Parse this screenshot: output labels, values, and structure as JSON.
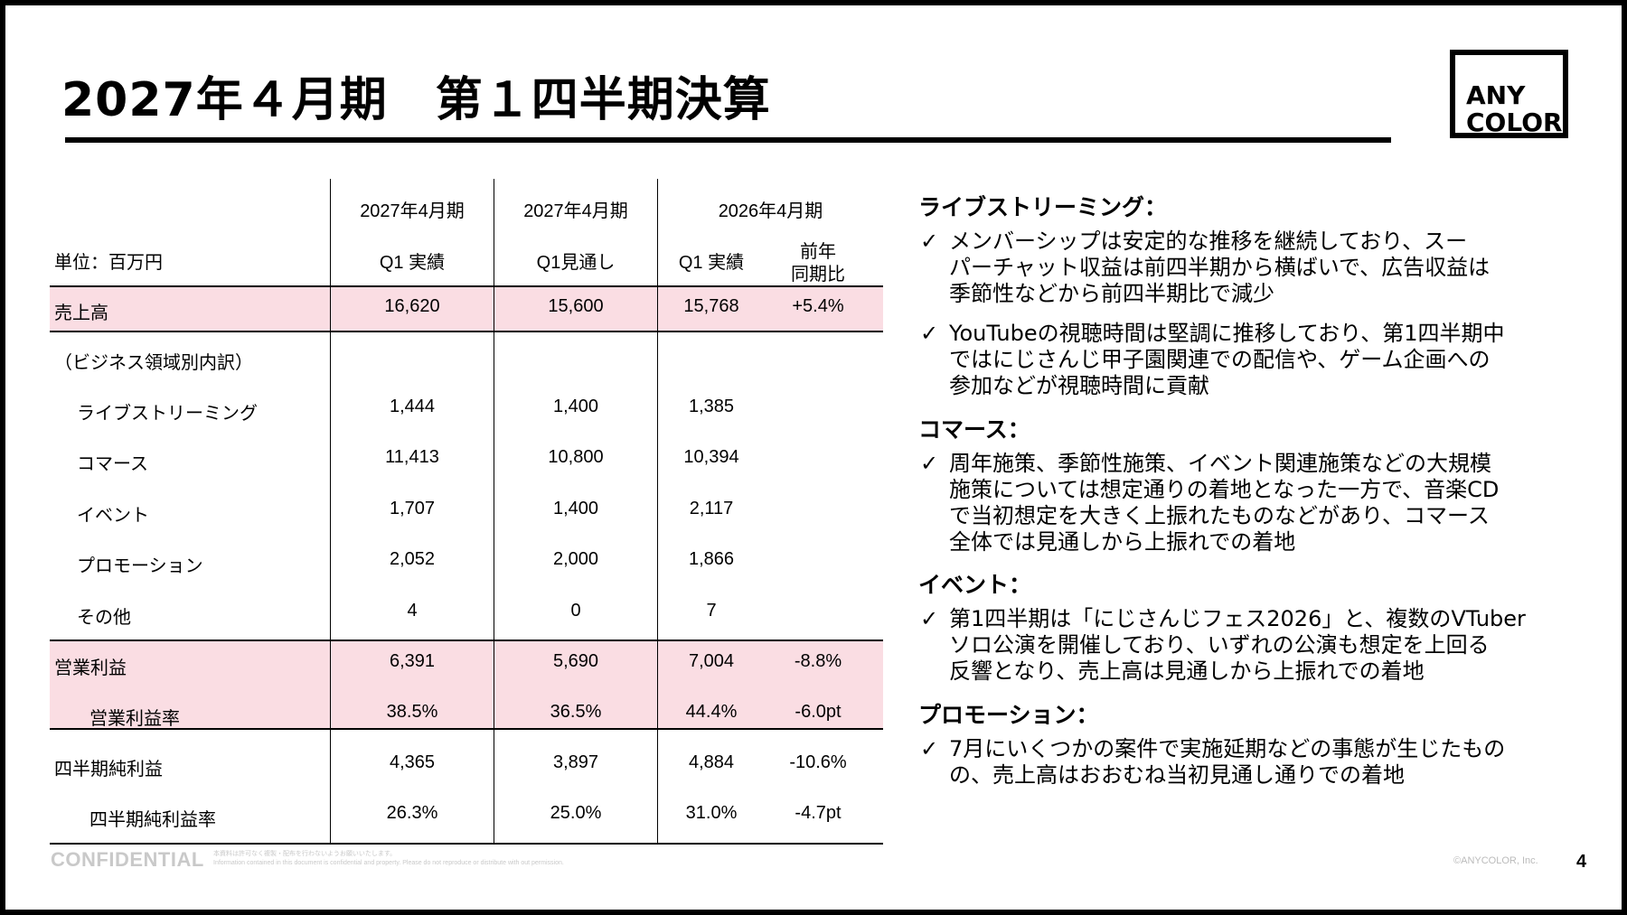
{
  "title": "2027年４月期　第１四半期決算",
  "logo": {
    "line1": "ANY",
    "line2": "COLOR"
  },
  "table": {
    "header": {
      "unit": "単位：百万円",
      "col1_top": "2027年4月期",
      "col1_bottom": "Q1 実績",
      "col2_top": "2027年4月期",
      "col2_bottom": "Q1見通し",
      "col3_top": "2026年4月期",
      "col3_bottom": "Q1 実績",
      "col4_line1": "前年",
      "col4_line2": "同期比"
    },
    "rows": [
      {
        "label": "売上高",
        "c1": "16,620",
        "c2": "15,600",
        "c3": "15,768",
        "c4": "+5.4%"
      },
      {
        "label": "（ビジネス領域別内訳）",
        "c1": "",
        "c2": "",
        "c3": "",
        "c4": ""
      },
      {
        "label": "ライブストリーミング",
        "c1": "1,444",
        "c2": "1,400",
        "c3": "1,385",
        "c4": ""
      },
      {
        "label": "コマース",
        "c1": "11,413",
        "c2": "10,800",
        "c3": "10,394",
        "c4": ""
      },
      {
        "label": "イベント",
        "c1": "1,707",
        "c2": "1,400",
        "c3": "2,117",
        "c4": ""
      },
      {
        "label": "プロモーション",
        "c1": "2,052",
        "c2": "2,000",
        "c3": "1,866",
        "c4": ""
      },
      {
        "label": "その他",
        "c1": "4",
        "c2": "0",
        "c3": "7",
        "c4": ""
      },
      {
        "label": "営業利益",
        "c1": "6,391",
        "c2": "5,690",
        "c3": "7,004",
        "c4": "-8.8%"
      },
      {
        "label": "営業利益率",
        "c1": "38.5%",
        "c2": "36.5%",
        "c3": "44.4%",
        "c4": "-6.0pt"
      },
      {
        "label": "四半期純利益",
        "c1": "4,365",
        "c2": "3,897",
        "c3": "4,884",
        "c4": "-10.6%"
      },
      {
        "label": "四半期純利益率",
        "c1": "26.3%",
        "c2": "25.0%",
        "c3": "31.0%",
        "c4": "-4.7pt"
      }
    ]
  },
  "commentary": {
    "live": {
      "heading": "ライブストリーミング：",
      "b1": [
        "メンバーシップは安定的な推移を継続しており、スー",
        "パーチャット収益は前四半期から横ばいで、広告収益は",
        "季節性などから前四半期比で減少"
      ],
      "b2": [
        "YouTubeの視聴時間は堅調に推移しており、第1四半期中",
        "ではにじさんじ甲子園関連での配信や、ゲーム企画への",
        "参加などが視聴時間に貢献"
      ]
    },
    "commerce": {
      "heading": "コマース：",
      "b1": [
        "周年施策、季節性施策、イベント関連施策などの大規模",
        "施策については想定通りの着地となった一方で、音楽CD",
        "で当初想定を大きく上振れたものなどがあり、コマース",
        "全体では見通しから上振れでの着地"
      ]
    },
    "event": {
      "heading": "イベント：",
      "b1": [
        "第1四半期は「にじさんじフェス2026」と、複数のVTuber",
        "ソロ公演を開催しており、いずれの公演も想定を上回る",
        "反響となり、売上高は見通しから上振れでの着地"
      ]
    },
    "promo": {
      "heading": "プロモーション：",
      "b1": [
        "7月にいくつかの案件で実施延期などの事態が生じたもの",
        "の、売上高はおおむね当初見通し通りでの着地"
      ]
    },
    "check": "✓"
  },
  "footer": {
    "confidential": "CONFIDENTIAL",
    "note1": "本資料は許可なく複製・配布を行わないようお願いいたします。",
    "note2": "Information contained in this document is confidential and property. Please do not reproduce or distribute with out permission.",
    "copyright": "©ANYCOLOR, Inc.",
    "page": "4"
  }
}
